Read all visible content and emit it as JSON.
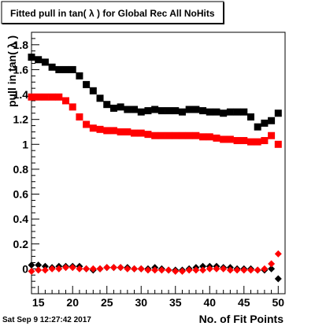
{
  "chart_data": {
    "type": "scatter",
    "title": "Fitted pull in tan( λ ) for Global Rec All NoHits",
    "xlabel": "No. of Fit Points",
    "ylabel": "pull in tan( λ )",
    "xlim": [
      14,
      51
    ],
    "ylim": [
      -0.2,
      1.9
    ],
    "x_ticks": [
      15,
      20,
      25,
      30,
      35,
      40,
      45,
      50
    ],
    "y_ticks": [
      0,
      0.2,
      0.4,
      0.6,
      0.8,
      1,
      1.2,
      1.4,
      1.6,
      1.8
    ],
    "x_tick_labels": [
      "15",
      "20",
      "25",
      "30",
      "35",
      "40",
      "45",
      "50"
    ],
    "y_tick_labels": [
      "0",
      "0.2",
      "0.4",
      "0.6",
      "0.8",
      "1",
      "1.2",
      "1.4",
      "1.6",
      "1.8"
    ],
    "grid": false,
    "series": [
      {
        "color": "#000000",
        "marker": "square",
        "x": [
          14,
          15,
          16,
          17,
          18,
          19,
          20,
          21,
          22,
          23,
          24,
          25,
          26,
          27,
          28,
          29,
          30,
          31,
          32,
          33,
          34,
          35,
          36,
          37,
          38,
          39,
          40,
          41,
          42,
          43,
          44,
          45,
          46,
          47,
          48,
          49,
          50
        ],
        "values": [
          1.7,
          1.68,
          1.66,
          1.62,
          1.6,
          1.6,
          1.6,
          1.55,
          1.48,
          1.43,
          1.37,
          1.32,
          1.29,
          1.3,
          1.28,
          1.28,
          1.26,
          1.27,
          1.28,
          1.27,
          1.27,
          1.27,
          1.26,
          1.28,
          1.28,
          1.27,
          1.26,
          1.26,
          1.25,
          1.26,
          1.26,
          1.26,
          1.22,
          1.14,
          1.17,
          1.19,
          1.25
        ]
      },
      {
        "color": "#ff0000",
        "marker": "square",
        "x": [
          14,
          15,
          16,
          17,
          18,
          19,
          20,
          21,
          22,
          23,
          24,
          25,
          26,
          27,
          28,
          29,
          30,
          31,
          32,
          33,
          34,
          35,
          36,
          37,
          38,
          39,
          40,
          41,
          42,
          43,
          44,
          45,
          46,
          47,
          48,
          49,
          50
        ],
        "values": [
          1.38,
          1.38,
          1.38,
          1.38,
          1.38,
          1.35,
          1.3,
          1.22,
          1.16,
          1.13,
          1.12,
          1.11,
          1.11,
          1.1,
          1.1,
          1.09,
          1.09,
          1.08,
          1.07,
          1.07,
          1.07,
          1.07,
          1.07,
          1.07,
          1.07,
          1.06,
          1.06,
          1.05,
          1.04,
          1.04,
          1.03,
          1.03,
          1.02,
          1.02,
          1.03,
          1.07,
          1.0
        ]
      },
      {
        "color": "#000000",
        "marker": "diamond",
        "x": [
          14,
          15,
          16,
          17,
          18,
          19,
          20,
          21,
          22,
          23,
          24,
          25,
          26,
          27,
          28,
          29,
          30,
          31,
          32,
          33,
          34,
          35,
          36,
          37,
          38,
          39,
          40,
          41,
          42,
          43,
          44,
          45,
          46,
          47,
          48,
          49,
          50
        ],
        "values": [
          0.03,
          0.03,
          0.02,
          0.01,
          0.02,
          0.02,
          0.02,
          0.02,
          0.0,
          -0.01,
          0.0,
          0.01,
          0.01,
          0.01,
          0.01,
          0.0,
          0.0,
          0.0,
          0.01,
          0.0,
          -0.01,
          -0.01,
          -0.01,
          0.0,
          0.01,
          0.02,
          0.02,
          0.02,
          0.01,
          0.01,
          0.0,
          0.0,
          0.0,
          -0.01,
          -0.01,
          0.0,
          -0.08
        ]
      },
      {
        "color": "#ff0000",
        "marker": "diamond",
        "x": [
          14,
          15,
          16,
          17,
          18,
          19,
          20,
          21,
          22,
          23,
          24,
          25,
          26,
          27,
          28,
          29,
          30,
          31,
          32,
          33,
          34,
          35,
          36,
          37,
          38,
          39,
          40,
          41,
          42,
          43,
          44,
          45,
          46,
          47,
          48,
          49,
          50
        ],
        "values": [
          -0.02,
          -0.01,
          -0.01,
          0.0,
          0.0,
          0.01,
          0.01,
          0.0,
          0.0,
          0.0,
          0.0,
          0.01,
          0.01,
          0.01,
          0.0,
          0.0,
          0.0,
          -0.01,
          -0.01,
          -0.01,
          -0.01,
          -0.02,
          -0.02,
          -0.01,
          -0.01,
          -0.01,
          0.0,
          0.0,
          0.0,
          -0.01,
          -0.01,
          -0.01,
          -0.01,
          -0.01,
          0.0,
          0.04,
          0.12
        ]
      }
    ]
  },
  "footer": {
    "timestamp": "Sat Sep  9 12:27:42 2017"
  }
}
